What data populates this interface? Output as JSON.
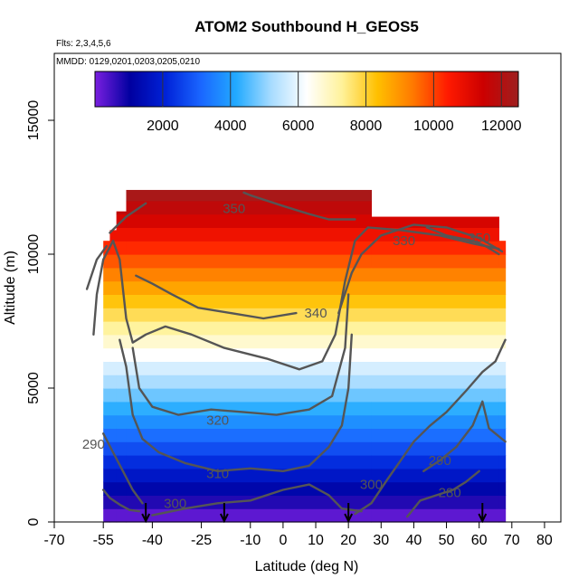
{
  "header": {
    "title": "ATOM2 Southbound H_GEOS5",
    "flights_note": "Flts: 2,3,4,5,6",
    "dates_note": "MMDD: 0129,0201,0203,0205,0210"
  },
  "chart_data": {
    "type": "heatmap",
    "title": "ATOM2 Southbound H_GEOS5",
    "xlabel": "Latitude (deg N)",
    "ylabel": "Altitude (m)",
    "xlim": [
      -70,
      85
    ],
    "ylim": [
      0,
      17500
    ],
    "x_ticks": [
      "-70",
      "-55",
      "-40",
      "-25",
      "-10",
      "0",
      "10",
      "20",
      "30",
      "40",
      "50",
      "60",
      "70",
      "80"
    ],
    "y_ticks": [
      "0",
      "5000",
      "10000",
      "15000"
    ],
    "colorbar": {
      "range": [
        0,
        12500
      ],
      "ticks": [
        "2000",
        "4000",
        "6000",
        "8000",
        "10000",
        "12000"
      ],
      "colors": [
        "#7a1fe0",
        "#0000a0",
        "#0022d8",
        "#1a66ff",
        "#22aaff",
        "#a8dcff",
        "#ffffff",
        "#fff29a",
        "#ffc000",
        "#ff7a00",
        "#ff1a00",
        "#cc0000",
        "#9e1f1f"
      ]
    },
    "field": "altitude-coloured cross-section, colour value equals altitude (m)",
    "coverage_top_m": [
      {
        "lat_from": -55,
        "lat_to": -53,
        "top": 10500
      },
      {
        "lat_from": -53,
        "lat_to": -51,
        "top": 10900
      },
      {
        "lat_from": -51,
        "lat_to": -48,
        "top": 11600
      },
      {
        "lat_from": -48,
        "lat_to": 27,
        "top": 12400
      },
      {
        "lat_from": 27,
        "lat_to": 66,
        "top": 11400
      },
      {
        "lat_from": 66,
        "lat_to": 68,
        "top": 10500
      }
    ],
    "contours": [
      {
        "level": "280",
        "points": [
          [
            -55,
            1200
          ],
          [
            -53,
            900
          ],
          [
            -50,
            650
          ],
          [
            -47,
            450
          ],
          [
            -44,
            400
          ]
        ]
      },
      {
        "level": "280",
        "points": [
          [
            38,
            200
          ],
          [
            42,
            800
          ],
          [
            47,
            1000
          ],
          [
            52,
            1200
          ],
          [
            56,
            1500
          ],
          [
            60,
            1900
          ]
        ]
      },
      {
        "level": "290",
        "points": [
          [
            -55,
            3300
          ],
          [
            -52,
            2600
          ],
          [
            -49,
            1900
          ],
          [
            -46,
            1200
          ],
          [
            -43,
            700
          ]
        ]
      },
      {
        "level": "290",
        "points": [
          [
            43,
            1900
          ],
          [
            48,
            2300
          ],
          [
            53,
            2800
          ],
          [
            58,
            3600
          ],
          [
            61,
            4500
          ],
          [
            63,
            3500
          ],
          [
            68,
            3000
          ]
        ]
      },
      {
        "level": "300",
        "points": [
          [
            -40,
            250
          ],
          [
            -30,
            500
          ],
          [
            -20,
            700
          ],
          [
            -10,
            800
          ],
          [
            0,
            1200
          ],
          [
            8,
            1400
          ],
          [
            14,
            1000
          ],
          [
            18,
            500
          ],
          [
            24,
            400
          ]
        ]
      },
      {
        "level": "300",
        "points": [
          [
            22,
            300
          ],
          [
            27,
            700
          ],
          [
            32,
            1600
          ],
          [
            36,
            2300
          ],
          [
            40,
            3000
          ],
          [
            45,
            3600
          ],
          [
            50,
            4100
          ],
          [
            56,
            4900
          ],
          [
            61,
            5600
          ],
          [
            65,
            6000
          ],
          [
            68,
            6800
          ]
        ]
      },
      {
        "level": "310",
        "points": [
          [
            -50,
            6800
          ],
          [
            -48,
            5800
          ],
          [
            -46,
            4000
          ],
          [
            -43,
            3100
          ],
          [
            -38,
            2600
          ],
          [
            -30,
            2200
          ],
          [
            -20,
            1900
          ],
          [
            -10,
            2000
          ],
          [
            0,
            1900
          ],
          [
            8,
            2100
          ],
          [
            14,
            2800
          ],
          [
            18,
            3600
          ],
          [
            20,
            5000
          ],
          [
            21,
            7000
          ]
        ]
      },
      {
        "level": "320",
        "points": [
          [
            -46,
            6500
          ],
          [
            -44,
            5000
          ],
          [
            -40,
            4300
          ],
          [
            -32,
            4000
          ],
          [
            -22,
            4200
          ],
          [
            -12,
            4100
          ],
          [
            -2,
            4000
          ],
          [
            8,
            4200
          ],
          [
            15,
            4700
          ],
          [
            19,
            6500
          ],
          [
            20,
            8500
          ]
        ]
      },
      {
        "level": "330",
        "points": [
          [
            -58,
            7000
          ],
          [
            -57,
            8500
          ],
          [
            -55,
            9800
          ],
          [
            -52,
            10500
          ],
          [
            -50,
            9800
          ],
          [
            -48,
            7600
          ],
          [
            -46,
            6700
          ],
          [
            -42,
            7000
          ],
          [
            -36,
            7300
          ],
          [
            -28,
            7000
          ],
          [
            -18,
            6500
          ],
          [
            -5,
            6100
          ],
          [
            5,
            5700
          ],
          [
            12,
            6000
          ],
          [
            16,
            7000
          ],
          [
            19,
            9000
          ],
          [
            22,
            10500
          ],
          [
            26,
            11000
          ],
          [
            36,
            10900
          ],
          [
            48,
            10700
          ],
          [
            58,
            10400
          ],
          [
            66,
            10200
          ]
        ]
      },
      {
        "level": "340",
        "points": [
          [
            -60,
            8700
          ],
          [
            -57,
            9800
          ],
          [
            -54,
            10300
          ]
        ]
      },
      {
        "level": "340",
        "points": [
          [
            -45,
            9200
          ],
          [
            -40,
            8900
          ],
          [
            -34,
            8500
          ],
          [
            -26,
            8000
          ],
          [
            -16,
            7800
          ],
          [
            -6,
            7600
          ],
          [
            4,
            7800
          ]
        ]
      },
      {
        "level": "340",
        "points": [
          [
            17,
            7800
          ],
          [
            21,
            9300
          ],
          [
            24,
            10000
          ],
          [
            30,
            10700
          ],
          [
            40,
            11100
          ],
          [
            50,
            11000
          ],
          [
            60,
            10600
          ],
          [
            67,
            10100
          ]
        ]
      },
      {
        "level": "350",
        "points": [
          [
            -53,
            10800
          ],
          [
            -48,
            11400
          ],
          [
            -42,
            11900
          ]
        ]
      },
      {
        "level": "350",
        "points": [
          [
            -12,
            12300
          ],
          [
            -10,
            12200
          ],
          [
            0,
            11800
          ],
          [
            8,
            11500
          ],
          [
            14,
            11300
          ],
          [
            22,
            11300
          ]
        ]
      },
      {
        "level": "350",
        "points": [
          [
            44,
            11000
          ],
          [
            50,
            10700
          ],
          [
            58,
            10500
          ],
          [
            62,
            10300
          ],
          [
            66,
            10000
          ]
        ]
      }
    ],
    "contour_labels": [
      {
        "text": "280",
        "x": 51,
        "y": 1100
      },
      {
        "text": "290",
        "x": -58,
        "y": 2900
      },
      {
        "text": "290",
        "x": 48,
        "y": 2300
      },
      {
        "text": "300",
        "x": -33,
        "y": 700
      },
      {
        "text": "300",
        "x": 27,
        "y": 1400
      },
      {
        "text": "310",
        "x": -20,
        "y": 1800
      },
      {
        "text": "320",
        "x": -20,
        "y": 3800
      },
      {
        "text": "330",
        "x": 37,
        "y": 10500
      },
      {
        "text": "340",
        "x": 10,
        "y": 7800
      },
      {
        "text": "350",
        "x": -15,
        "y": 11700
      },
      {
        "text": "350",
        "x": 60,
        "y": 10600
      }
    ],
    "arrows_lat": [
      -42,
      -18,
      20,
      61
    ]
  }
}
